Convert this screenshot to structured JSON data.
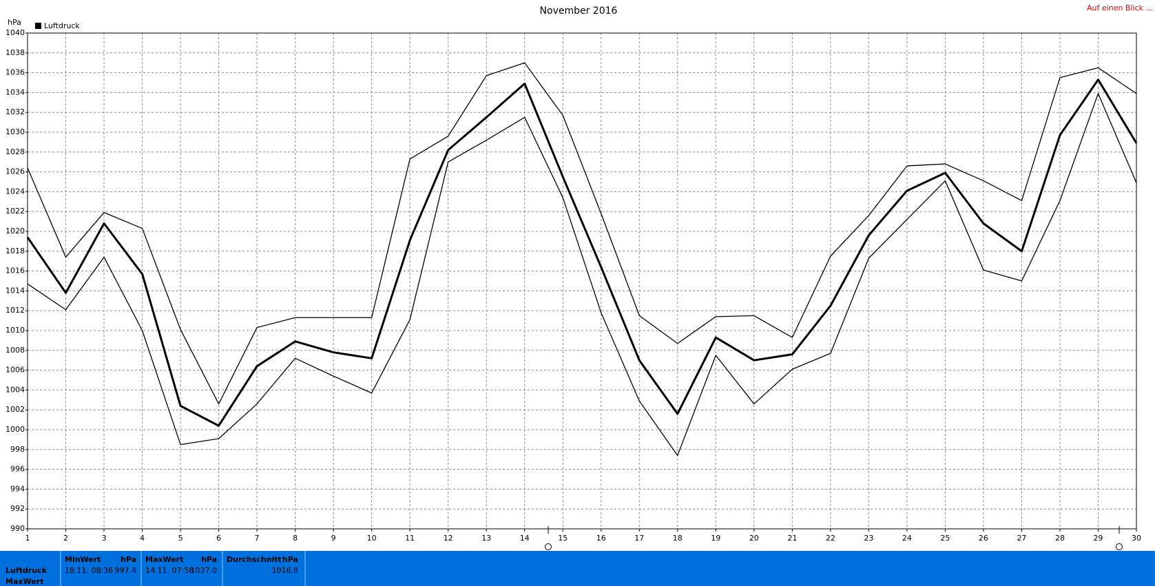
{
  "chart_data": {
    "type": "line",
    "title": "November 2016",
    "link": "Auf einen Blick ...",
    "y_label": "hPa",
    "x": [
      1,
      2,
      3,
      4,
      5,
      6,
      7,
      8,
      9,
      10,
      11,
      12,
      13,
      14,
      15,
      16,
      17,
      18,
      19,
      20,
      21,
      22,
      23,
      24,
      25,
      26,
      27,
      28,
      29,
      30
    ],
    "xlim": [
      1,
      30
    ],
    "series": [
      {
        "color": "#000000",
        "values": [
          1026.4,
          1017.4,
          1021.9,
          1020.3,
          1010.1,
          1002.6,
          1010.3,
          1011.3,
          1011.3,
          1011.3,
          1027.3,
          1029.6,
          1035.7,
          1037.0,
          1031.7,
          1021.8,
          1011.5,
          1008.7,
          1011.4,
          1011.5,
          1009.3,
          1017.5,
          1021.6,
          1026.6,
          1026.8,
          1025.1,
          1023.1,
          1035.5,
          1036.5,
          1033.9
        ]
      },
      {
        "name": "Luftdruck",
        "color": "#000000",
        "values": [
          1019.4,
          1013.8,
          1020.8,
          1015.7,
          1002.4,
          1000.4,
          1006.4,
          1008.9,
          1007.8,
          1007.2,
          1019.1,
          1028.2,
          1031.5,
          1034.9,
          1025.5,
          1016.4,
          1007.0,
          1001.6,
          1009.3,
          1007.0,
          1007.6,
          1012.5,
          1019.6,
          1024.1,
          1025.9,
          1020.8,
          1018.0,
          1029.7,
          1035.3,
          1028.9
        ]
      },
      {
        "color": "#000000",
        "values": [
          1014.7,
          1012.1,
          1017.4,
          1010.0,
          998.5,
          999.1,
          1002.6,
          1007.2,
          1005.4,
          1003.7,
          1011.1,
          1027.0,
          1029.2,
          1031.5,
          1023.4,
          1011.8,
          1002.9,
          997.4,
          1007.5,
          1002.6,
          1006.1,
          1007.7,
          1017.3,
          1021.2,
          1025.1,
          1016.1,
          1015.0,
          1023.1,
          1033.9,
          1024.9
        ]
      }
    ],
    "ylim": [
      990,
      1040
    ],
    "yticks": [
      990,
      992,
      994,
      996,
      998,
      1000,
      1002,
      1004,
      1006,
      1008,
      1010,
      1012,
      1014,
      1016,
      1018,
      1020,
      1022,
      1024,
      1026,
      1028,
      1030,
      1032,
      1034,
      1036,
      1038,
      1040
    ],
    "grid": true
  },
  "summary": {
    "rows": [
      "Luftdruck",
      "MaxWert"
    ],
    "columns": [
      {
        "header": "MinWert",
        "unit": "hPa",
        "time": "18.11.  08:36",
        "value": "997.4"
      },
      {
        "header": "MaxWert",
        "unit": "hPa",
        "time": "14.11.  07:58",
        "value": "1037.0"
      },
      {
        "header": "Durchschnitt",
        "unit": "hPa",
        "value": "1016.8"
      }
    ]
  }
}
